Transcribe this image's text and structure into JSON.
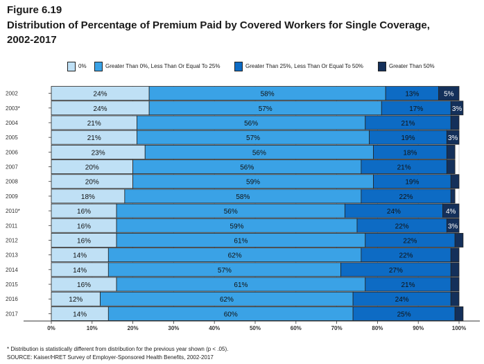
{
  "figure_label": "Figure 6.19",
  "title_line1": "Distribution of Percentage of Premium Paid by Covered Workers for Single Coverage,",
  "title_line2": "2002-2017",
  "footnote": "* Distribution is statistically different from distribution for the previous year shown (p < .05).",
  "source": "SOURCE: Kaiser/HRET Survey of Employer-Sponsored Health Benefits, 2002-2017",
  "colors": {
    "s0": "#bfe0f5",
    "s1": "#3aa2e6",
    "s2": "#0d6bc4",
    "s3": "#14305a",
    "grid": "#cccccc",
    "axis": "#333333"
  },
  "chart_data": {
    "type": "bar",
    "orientation": "horizontal",
    "stacked": true,
    "categories": [
      "2002",
      "2003*",
      "2004",
      "2005",
      "2006",
      "2007",
      "2008",
      "2009",
      "2010*",
      "2011",
      "2012",
      "2013",
      "2014",
      "2015",
      "2016",
      "2017"
    ],
    "series": [
      {
        "name": "0%",
        "values": [
          24,
          24,
          21,
          21,
          23,
          20,
          20,
          18,
          16,
          16,
          16,
          14,
          14,
          16,
          12,
          14
        ],
        "labels": [
          "24%",
          "24%",
          "21%",
          "21%",
          "23%",
          "20%",
          "20%",
          "18%",
          "16%",
          "16%",
          "16%",
          "14%",
          "14%",
          "16%",
          "12%",
          "14%"
        ]
      },
      {
        "name": "Greater Than 0%, Less Than Or Equal To 25%",
        "values": [
          58,
          57,
          56,
          57,
          56,
          56,
          59,
          58,
          56,
          59,
          61,
          62,
          57,
          61,
          62,
          60
        ],
        "labels": [
          "58%",
          "57%",
          "56%",
          "57%",
          "56%",
          "56%",
          "59%",
          "58%",
          "56%",
          "59%",
          "61%",
          "62%",
          "57%",
          "61%",
          "62%",
          "60%"
        ]
      },
      {
        "name": "Greater Than 25%, Less Than Or Equal To 50%",
        "values": [
          13,
          17,
          21,
          19,
          18,
          21,
          19,
          22,
          24,
          22,
          22,
          22,
          27,
          21,
          24,
          25
        ],
        "labels": [
          "13%",
          "17%",
          "21%",
          "19%",
          "18%",
          "21%",
          "19%",
          "22%",
          "24%",
          "22%",
          "22%",
          "22%",
          "27%",
          "21%",
          "24%",
          "25%"
        ]
      },
      {
        "name": "Greater Than 50%",
        "values": [
          5,
          3,
          2,
          3,
          2,
          2,
          2,
          1,
          4,
          3,
          2,
          2,
          2,
          2,
          2,
          2
        ],
        "labels": [
          "5%",
          "3%",
          "",
          "3%",
          "",
          "",
          "",
          "",
          "4%",
          "3%",
          "",
          "",
          "",
          "",
          "",
          ""
        ]
      }
    ],
    "x_ticks": [
      "0%",
      "10%",
      "20%",
      "30%",
      "40%",
      "50%",
      "60%",
      "70%",
      "80%",
      "90%",
      "100%"
    ],
    "xlim": [
      0,
      100
    ],
    "legend_position": "top",
    "grid": true
  }
}
